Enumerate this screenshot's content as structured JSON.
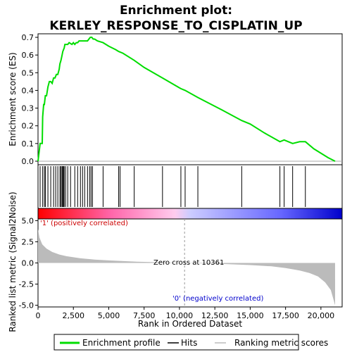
{
  "chart_data": {
    "type": "line",
    "title_line1": "Enrichment plot:",
    "title_line2": "KERLEY_RESPONSE_TO_CISPLATIN_UP",
    "es_panel": {
      "ylabel": "Enrichment score (ES)",
      "ylim": [
        -0.02,
        0.72
      ],
      "yticks": [
        "0.0",
        "0.1",
        "0.2",
        "0.3",
        "0.4",
        "0.5",
        "0.6",
        "0.7"
      ],
      "yticks_values": [
        0.0,
        0.1,
        0.2,
        0.3,
        0.4,
        0.5,
        0.6,
        0.7
      ],
      "line_color": "#00dd00",
      "series": [
        {
          "x": [
            0,
            150,
            200,
            300,
            330,
            400,
            450,
            520,
            600,
            700,
            800,
            900,
            1000,
            1100,
            1200,
            1300,
            1400,
            1500,
            1550,
            1620,
            1700,
            1750,
            1800,
            1850,
            1900,
            1950,
            2000,
            2100,
            2200,
            2400,
            2500,
            2600,
            2700,
            2800,
            2900,
            3000,
            3100,
            3200,
            3300,
            3400,
            3500,
            3600,
            3700,
            3800,
            3900,
            4000,
            4200,
            4600,
            5000,
            5500,
            5700,
            6000,
            6800,
            7500,
            8800,
            10100,
            10400,
            11300,
            13000,
            14400,
            15000,
            16000,
            17100,
            17400,
            17700,
            18000,
            18500,
            18900,
            19500,
            20500,
            21000
          ],
          "y": [
            0.0,
            0.1,
            0.1,
            0.1,
            0.25,
            0.32,
            0.32,
            0.37,
            0.37,
            0.42,
            0.45,
            0.45,
            0.44,
            0.47,
            0.47,
            0.49,
            0.49,
            0.52,
            0.55,
            0.57,
            0.6,
            0.62,
            0.63,
            0.64,
            0.66,
            0.66,
            0.66,
            0.66,
            0.67,
            0.66,
            0.67,
            0.66,
            0.67,
            0.67,
            0.68,
            0.68,
            0.68,
            0.68,
            0.68,
            0.68,
            0.68,
            0.69,
            0.7,
            0.7,
            0.69,
            0.69,
            0.68,
            0.67,
            0.65,
            0.63,
            0.62,
            0.61,
            0.57,
            0.53,
            0.47,
            0.41,
            0.4,
            0.36,
            0.29,
            0.23,
            0.21,
            0.16,
            0.11,
            0.12,
            0.11,
            0.1,
            0.11,
            0.11,
            0.07,
            0.02,
            0.0
          ]
        }
      ]
    },
    "hits_panel": {
      "hit_positions": [
        150,
        330,
        450,
        520,
        700,
        900,
        1100,
        1250,
        1400,
        1550,
        1620,
        1700,
        1750,
        1800,
        1850,
        1950,
        2100,
        2300,
        2600,
        2800,
        3000,
        3150,
        3300,
        3500,
        3650,
        3750,
        3850,
        4600,
        5700,
        5800,
        6800,
        8800,
        10100,
        10400,
        11300,
        14400,
        17100,
        17400,
        18000,
        18900
      ],
      "gradient_colors": [
        "#ff0000",
        "#ff66aa",
        "#ffccee",
        "#ccccff",
        "#6666ff",
        "#0000cc"
      ]
    },
    "rank_panel": {
      "ylabel": "Ranked list metric (Signal2Noise)",
      "xlabel": "Rank in Ordered Dataset",
      "ylim": [
        -5.2,
        5.2
      ],
      "yticks": [
        "5.0",
        "2.5",
        "0.0",
        "-2.5",
        "-5.0"
      ],
      "yticks_values": [
        5.0,
        2.5,
        0.0,
        -2.5,
        -5.0
      ],
      "xlim": [
        0,
        21500
      ],
      "xticks": [
        "0",
        "2,500",
        "5,000",
        "7,500",
        "10,000",
        "12,500",
        "15,000",
        "17,500",
        "20,000"
      ],
      "xticks_values": [
        0,
        2500,
        5000,
        7500,
        10000,
        12500,
        15000,
        17500,
        20000
      ],
      "zero_cross": 10361,
      "zero_cross_label": "Zero cross at 10361",
      "positive_label": "'1' (positively correlated)",
      "negative_label": "'0' (negatively correlated)",
      "metric_x": [
        0,
        100,
        300,
        600,
        1000,
        1500,
        2000,
        3000,
        4000,
        5000,
        7000,
        10361,
        13000,
        15000,
        16500,
        17500,
        18500,
        19200,
        19800,
        20300,
        20700,
        21000
      ],
      "metric_y": [
        4.0,
        3.0,
        2.2,
        1.7,
        1.3,
        1.0,
        0.8,
        0.55,
        0.4,
        0.3,
        0.15,
        0.0,
        -0.12,
        -0.25,
        -0.4,
        -0.6,
        -0.9,
        -1.2,
        -1.6,
        -2.3,
        -3.2,
        -5.0
      ]
    },
    "legend": {
      "items": [
        "Enrichment profile",
        "Hits",
        "Ranking metric scores"
      ],
      "colors": [
        "#00dd00",
        "#000000",
        "#bbbbbb"
      ]
    }
  }
}
